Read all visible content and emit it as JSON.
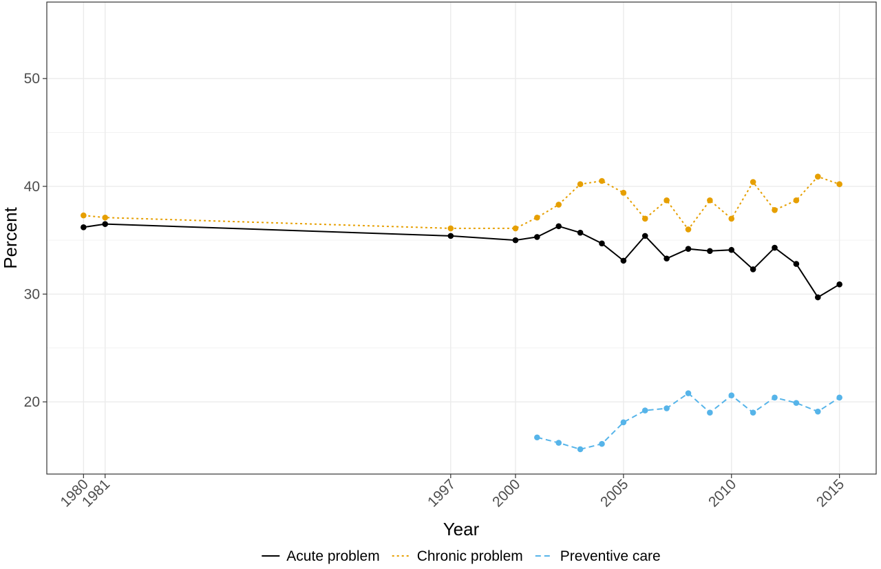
{
  "chart_data": {
    "type": "line",
    "xlabel": "Year",
    "ylabel": "Percent",
    "x_ticks": [
      1980,
      1981,
      1997,
      2000,
      2005,
      2010,
      2015
    ],
    "y_ticks": [
      20,
      30,
      40,
      50
    ],
    "xlim": [
      1978.3,
      2016.7
    ],
    "ylim": [
      13.3,
      57.1
    ],
    "grid": true,
    "legend_position": "bottom",
    "series": [
      {
        "name": "Acute problem",
        "color": "#000000",
        "dash": "solid",
        "points": [
          [
            1980,
            36.2
          ],
          [
            1981,
            36.5
          ],
          [
            1997,
            35.4
          ],
          [
            2000,
            35.0
          ],
          [
            2001,
            35.3
          ],
          [
            2002,
            36.3
          ],
          [
            2003,
            35.7
          ],
          [
            2004,
            34.7
          ],
          [
            2005,
            33.1
          ],
          [
            2006,
            35.4
          ],
          [
            2007,
            33.3
          ],
          [
            2008,
            34.2
          ],
          [
            2009,
            34.0
          ],
          [
            2010,
            34.1
          ],
          [
            2011,
            32.3
          ],
          [
            2012,
            34.3
          ],
          [
            2013,
            32.8
          ],
          [
            2014,
            29.7
          ],
          [
            2015,
            30.9
          ]
        ]
      },
      {
        "name": "Chronic problem",
        "color": "#E69F00",
        "dash": "dotted",
        "points": [
          [
            1980,
            37.3
          ],
          [
            1981,
            37.1
          ],
          [
            1997,
            36.1
          ],
          [
            2000,
            36.1
          ],
          [
            2001,
            37.1
          ],
          [
            2002,
            38.3
          ],
          [
            2003,
            40.2
          ],
          [
            2004,
            40.5
          ],
          [
            2005,
            39.4
          ],
          [
            2006,
            37.0
          ],
          [
            2007,
            38.7
          ],
          [
            2008,
            36.0
          ],
          [
            2009,
            38.7
          ],
          [
            2010,
            37.0
          ],
          [
            2011,
            40.4
          ],
          [
            2012,
            37.8
          ],
          [
            2013,
            38.7
          ],
          [
            2014,
            40.9
          ],
          [
            2015,
            40.2
          ]
        ]
      },
      {
        "name": "Preventive care",
        "color": "#56B4E9",
        "dash": "dashed",
        "points": [
          [
            2001,
            16.7
          ],
          [
            2002,
            16.2
          ],
          [
            2003,
            15.6
          ],
          [
            2004,
            16.1
          ],
          [
            2005,
            18.1
          ],
          [
            2006,
            19.2
          ],
          [
            2007,
            19.4
          ],
          [
            2008,
            20.8
          ],
          [
            2009,
            19.0
          ],
          [
            2010,
            20.6
          ],
          [
            2011,
            19.0
          ],
          [
            2012,
            20.4
          ],
          [
            2013,
            19.9
          ],
          [
            2014,
            19.1
          ],
          [
            2015,
            20.4
          ]
        ]
      }
    ]
  }
}
